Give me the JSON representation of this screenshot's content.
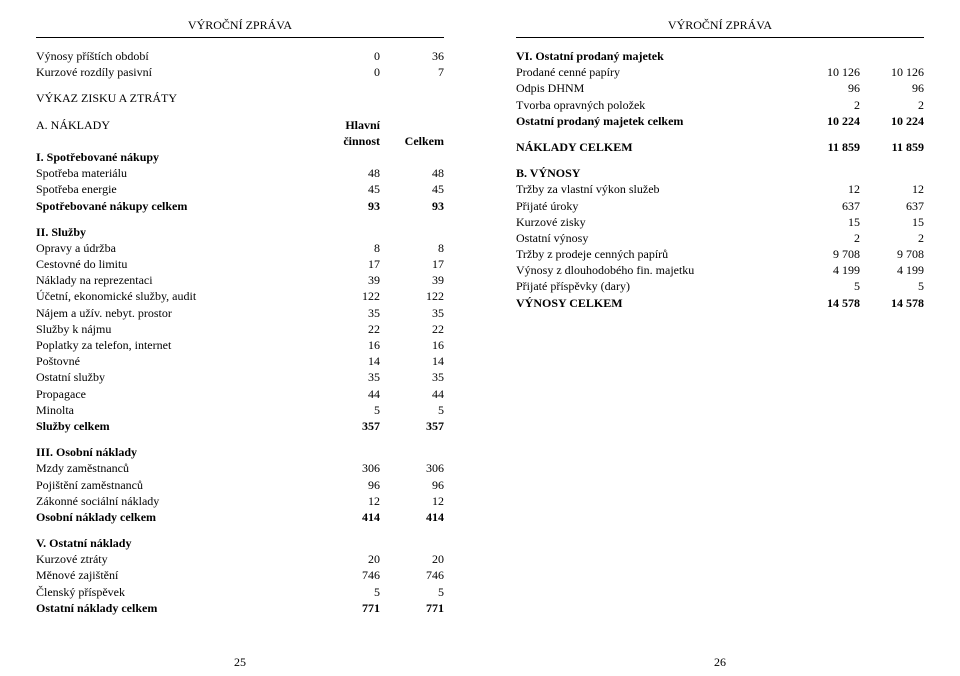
{
  "header_title": "VÝROČNÍ ZPRÁVA",
  "left": {
    "top_rows": [
      {
        "label": "Výnosy příštích období",
        "c1": "0",
        "c2": "36"
      },
      {
        "label": "Kurzové rozdíly pasivní",
        "c1": "0",
        "c2": "7"
      }
    ],
    "pl_title": "VÝKAZ ZISKU A ZTRÁTY",
    "naklady_label": "A. NÁKLADY",
    "col1_head": "Hlavní činnost",
    "col1_head_line1": "Hlavní",
    "col1_head_line2": "činnost",
    "col2_head": "Celkem",
    "sections": [
      {
        "title": "I. Spotřebované nákupy",
        "rows": [
          {
            "label": "Spotřeba materiálu",
            "c1": "48",
            "c2": "48"
          },
          {
            "label": "Spotřeba energie",
            "c1": "45",
            "c2": "45"
          },
          {
            "label": "Spotřebované nákupy celkem",
            "c1": "93",
            "c2": "93",
            "bold": true
          }
        ]
      },
      {
        "title": "II. Služby",
        "rows": [
          {
            "label": "Opravy a údržba",
            "c1": "8",
            "c2": "8"
          },
          {
            "label": "Cestovné do limitu",
            "c1": "17",
            "c2": "17"
          },
          {
            "label": "Náklady na reprezentaci",
            "c1": "39",
            "c2": "39"
          },
          {
            "label": "Účetní, ekonomické služby, audit",
            "c1": "122",
            "c2": "122"
          },
          {
            "label": "Nájem a užív. nebyt. prostor",
            "c1": "35",
            "c2": "35"
          },
          {
            "label": "Služby k nájmu",
            "c1": "22",
            "c2": "22"
          },
          {
            "label": "Poplatky za telefon, internet",
            "c1": "16",
            "c2": "16"
          },
          {
            "label": "Poštovné",
            "c1": "14",
            "c2": "14"
          },
          {
            "label": "Ostatní služby",
            "c1": "35",
            "c2": "35"
          },
          {
            "label": "Propagace",
            "c1": "44",
            "c2": "44"
          },
          {
            "label": "Minolta",
            "c1": "5",
            "c2": "5"
          },
          {
            "label": "Služby celkem",
            "c1": "357",
            "c2": "357",
            "bold": true
          }
        ]
      },
      {
        "title": "III. Osobní náklady",
        "rows": [
          {
            "label": "Mzdy zaměstnanců",
            "c1": "306",
            "c2": "306"
          },
          {
            "label": "Pojištění zaměstnanců",
            "c1": "96",
            "c2": "96"
          },
          {
            "label": "Zákonné sociální náklady",
            "c1": "12",
            "c2": "12"
          },
          {
            "label": "Osobní náklady celkem",
            "c1": "414",
            "c2": "414",
            "bold": true
          }
        ]
      },
      {
        "title": "V. Ostatní náklady",
        "rows": [
          {
            "label": "Kurzové ztráty",
            "c1": "20",
            "c2": "20"
          },
          {
            "label": "Měnové zajištění",
            "c1": "746",
            "c2": "746"
          },
          {
            "label": "Členský příspěvek",
            "c1": "5",
            "c2": "5"
          },
          {
            "label": "Ostatní náklady celkem",
            "c1": "771",
            "c2": "771",
            "bold": true
          }
        ]
      }
    ],
    "page_number": "25"
  },
  "right": {
    "sections": [
      {
        "title": "VI. Ostatní prodaný majetek",
        "rows": [
          {
            "label": "Prodané cenné papíry",
            "c1": "10 126",
            "c2": "10 126"
          },
          {
            "label": "Odpis DHNM",
            "c1": "96",
            "c2": "96"
          },
          {
            "label": "Tvorba opravných položek",
            "c1": "2",
            "c2": "2"
          },
          {
            "label": "Ostatní prodaný majetek celkem",
            "c1": "10 224",
            "c2": "10 224",
            "bold": true
          }
        ]
      }
    ],
    "naklady_total": {
      "label": "NÁKLADY CELKEM",
      "c1": "11 859",
      "c2": "11 859"
    },
    "vynosy_title": "B. VÝNOSY",
    "vynosy_rows": [
      {
        "label": "Tržby za vlastní výkon služeb",
        "c1": "12",
        "c2": "12"
      },
      {
        "label": "Přijaté úroky",
        "c1": "637",
        "c2": "637"
      },
      {
        "label": "Kurzové zisky",
        "c1": "15",
        "c2": "15"
      },
      {
        "label": "Ostatní výnosy",
        "c1": "2",
        "c2": "2"
      },
      {
        "label": "Tržby z prodeje cenných papírů",
        "c1": "9 708",
        "c2": "9 708"
      },
      {
        "label": "Výnosy z dlouhodobého fin. majetku",
        "c1": "4 199",
        "c2": "4 199"
      },
      {
        "label": "Přijaté příspěvky (dary)",
        "c1": "5",
        "c2": "5"
      },
      {
        "label": "VÝNOSY CELKEM",
        "c1": "14 578",
        "c2": "14 578",
        "bold": true
      }
    ],
    "page_number": "26"
  }
}
